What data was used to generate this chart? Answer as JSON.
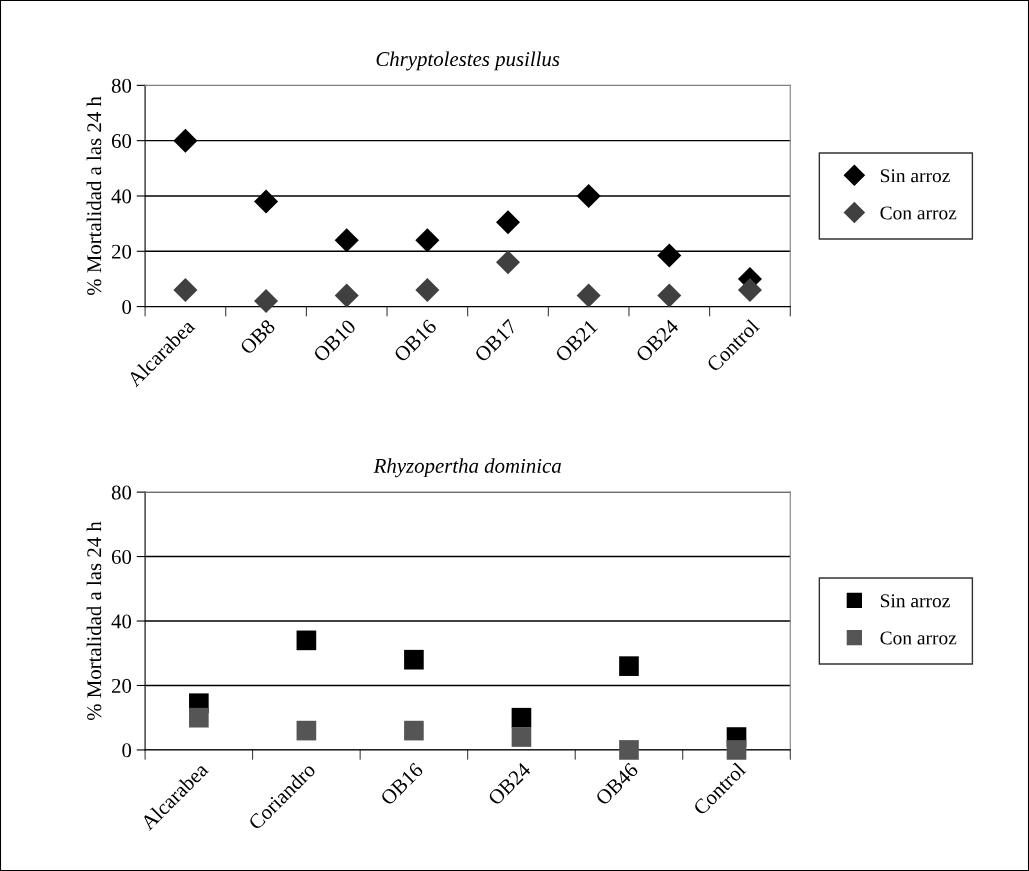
{
  "chart_data": [
    {
      "type": "scatter",
      "title": "Chryptolestes pusillus",
      "ylabel": "% Mortalidad a las 24 h",
      "categories": [
        "Alcarabea",
        "OB8",
        "OB10",
        "OB16",
        "OB17",
        "OB21",
        "OB24",
        "Control"
      ],
      "marker": "diamond",
      "ylim": [
        0,
        80
      ],
      "yticks": [
        0,
        20,
        40,
        60,
        80
      ],
      "grid": "y",
      "legend": "right",
      "series": [
        {
          "name": "Sin arroz",
          "color": "#000000",
          "values": [
            60,
            38,
            24,
            24,
            30.5,
            40,
            18.5,
            10
          ]
        },
        {
          "name": "Con arroz",
          "color": "#404040",
          "values": [
            6,
            2,
            4,
            6,
            16,
            4,
            4,
            6
          ]
        }
      ]
    },
    {
      "type": "scatter",
      "title": "Rhyzopertha dominica",
      "ylabel": "% Mortalidad a las 24 h",
      "categories": [
        "Alcarabea",
        "Coriandro",
        "OB16",
        "OB24",
        "OB46",
        "Control"
      ],
      "marker": "square",
      "ylim": [
        0,
        80
      ],
      "yticks": [
        0,
        20,
        40,
        60,
        80
      ],
      "grid": "y",
      "legend": "right",
      "series": [
        {
          "name": "Sin arroz",
          "color": "#000000",
          "values": [
            14.5,
            34,
            28,
            10,
            26,
            4
          ]
        },
        {
          "name": "Con arroz",
          "color": "#555555",
          "values": [
            10,
            6,
            6,
            4,
            0,
            0
          ]
        }
      ]
    }
  ]
}
